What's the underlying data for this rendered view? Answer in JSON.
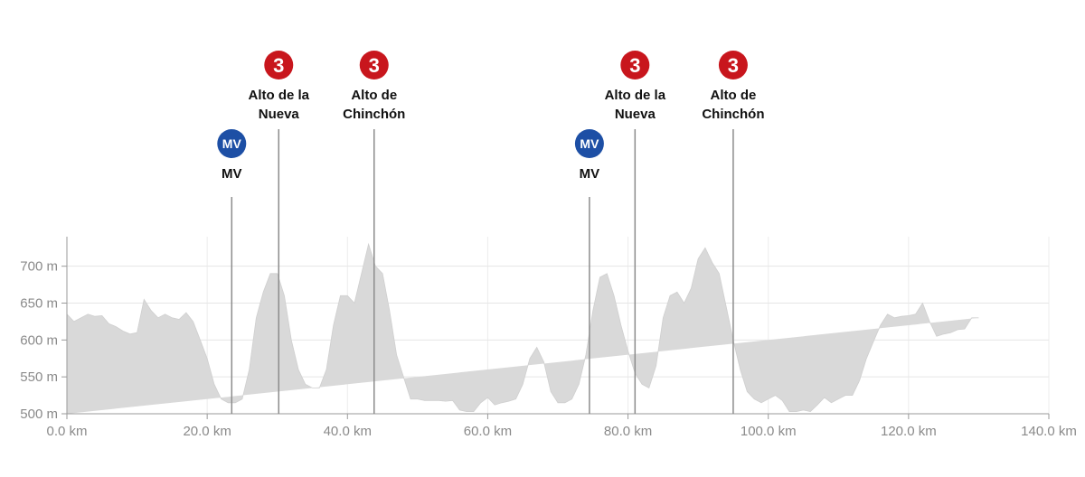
{
  "chart_data": {
    "type": "area",
    "xlabel": "",
    "ylabel": "",
    "xlim": [
      0,
      140
    ],
    "ylim": [
      500,
      740
    ],
    "x_ticks": [
      "0.0 km",
      "20.0 km",
      "40.0 km",
      "60.0 km",
      "80.0 km",
      "100.0 km",
      "120.0 km",
      "140.0 km"
    ],
    "y_ticks": [
      "500 m",
      "550 m",
      "600 m",
      "650 m",
      "700 m"
    ],
    "grid": true,
    "fill_color": "#d9d9d9",
    "profile": {
      "x": [
        0,
        1,
        2,
        3,
        4,
        5,
        6,
        7,
        8,
        9,
        10,
        11,
        12,
        13,
        14,
        15,
        16,
        17,
        18,
        19,
        20,
        21,
        22,
        23,
        24,
        25,
        26,
        27,
        28,
        29,
        30,
        31,
        32,
        33,
        34,
        35,
        36,
        37,
        38,
        39,
        40,
        41,
        42,
        43,
        44,
        45,
        46,
        47,
        48,
        49,
        50,
        51,
        52,
        53,
        54,
        55,
        56,
        57,
        58,
        59,
        60,
        61,
        62,
        63,
        64,
        65,
        66,
        67,
        68,
        69,
        70,
        71,
        72,
        73,
        74,
        75,
        76,
        77,
        78,
        79,
        80,
        81,
        82,
        83,
        84,
        85,
        86,
        87,
        88,
        89,
        90,
        91,
        92,
        93,
        94,
        95,
        96,
        97,
        98,
        99,
        100,
        101,
        102,
        103,
        104,
        105,
        106,
        107,
        108,
        109,
        110,
        111,
        112,
        113,
        114,
        115,
        116,
        117,
        118,
        119,
        120,
        121,
        122,
        123,
        124,
        125,
        126,
        127,
        128,
        129,
        130,
        131,
        132,
        133,
        134,
        135,
        136,
        137,
        138,
        139,
        140
      ],
      "elevation": [
        635,
        625,
        630,
        635,
        632,
        633,
        622,
        618,
        612,
        608,
        610,
        655,
        640,
        630,
        635,
        630,
        628,
        637,
        625,
        600,
        575,
        540,
        520,
        515,
        515,
        520,
        560,
        630,
        665,
        690,
        690,
        660,
        600,
        560,
        540,
        535,
        535,
        560,
        620,
        660,
        660,
        650,
        690,
        730,
        700,
        690,
        640,
        580,
        550,
        520,
        520,
        518,
        518,
        518,
        517,
        518,
        505,
        503,
        503,
        515,
        522,
        512,
        515,
        517,
        520,
        540,
        575,
        590,
        570,
        530,
        515,
        515,
        520,
        540,
        580,
        640,
        685,
        690,
        660,
        620,
        585,
        555,
        540,
        535,
        565,
        630,
        660,
        665,
        650,
        670,
        710,
        725,
        705,
        690,
        645,
        600,
        560,
        530,
        520,
        515,
        520,
        525,
        518,
        503,
        503,
        505,
        503,
        512,
        522,
        515,
        520,
        525,
        525,
        545,
        575,
        598,
        620,
        635,
        630,
        632,
        633,
        635,
        650,
        625,
        605,
        608,
        610,
        614,
        615,
        630,
        630
      ]
    },
    "markers": [
      {
        "x": 23.5,
        "label_lines": [
          "MV"
        ],
        "badge": "MV",
        "badge_color": "#1d4fa5"
      },
      {
        "x": 30.2,
        "label_lines": [
          "Alto de la",
          "Nueva"
        ],
        "badge": "3",
        "badge_color": "#c8161d"
      },
      {
        "x": 43.8,
        "label_lines": [
          "Alto de",
          "Chinchón"
        ],
        "badge": "3",
        "badge_color": "#c8161d"
      },
      {
        "x": 74.5,
        "label_lines": [
          "MV"
        ],
        "badge": "MV",
        "badge_color": "#1d4fa5"
      },
      {
        "x": 81.0,
        "label_lines": [
          "Alto de la",
          "Nueva"
        ],
        "badge": "3",
        "badge_color": "#c8161d"
      },
      {
        "x": 95.0,
        "label_lines": [
          "Alto de",
          "Chinchón"
        ],
        "badge": "3",
        "badge_color": "#c8161d"
      }
    ]
  }
}
